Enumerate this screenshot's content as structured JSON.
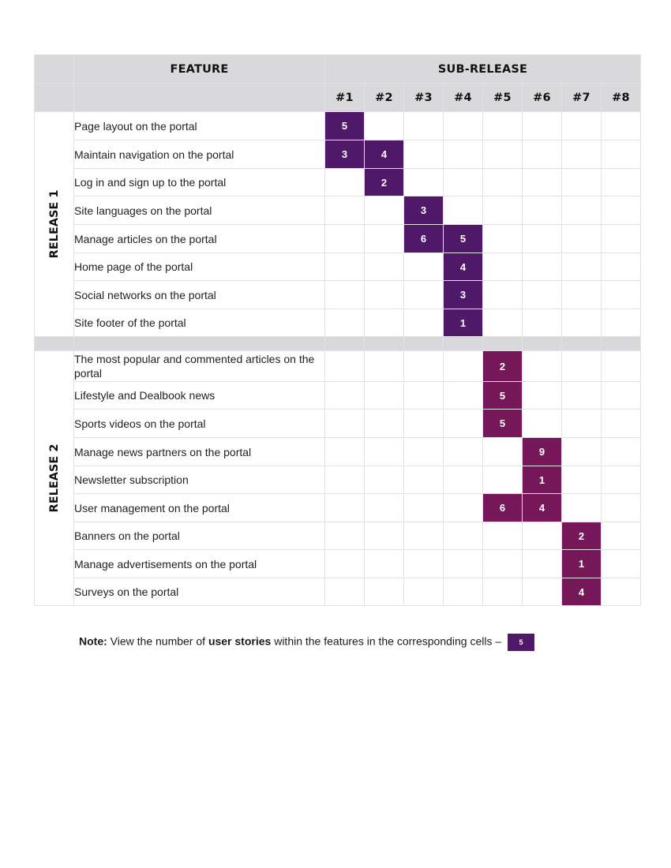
{
  "header": {
    "feature_label": "FEATURE",
    "subrelease_label": "SUB-RELEASE",
    "subreleases": [
      "#1",
      "#2",
      "#3",
      "#4",
      "#5",
      "#6",
      "#7",
      "#8"
    ]
  },
  "colors": {
    "release1": "#4f1868",
    "release2": "#76175a",
    "header_bg": "#d9d9dc",
    "grid": "#e2e2e4"
  },
  "releases": [
    {
      "label": "RELEASE 1",
      "color": "#4f1868",
      "rows": [
        {
          "feature": "Page layout on the portal",
          "cells": [
            5,
            null,
            null,
            null,
            null,
            null,
            null,
            null
          ]
        },
        {
          "feature": "Maintain navigation on the portal",
          "cells": [
            3,
            4,
            null,
            null,
            null,
            null,
            null,
            null
          ]
        },
        {
          "feature": "Log in and sign up to the portal",
          "cells": [
            null,
            2,
            null,
            null,
            null,
            null,
            null,
            null
          ]
        },
        {
          "feature": "Site languages on the portal",
          "cells": [
            null,
            null,
            3,
            null,
            null,
            null,
            null,
            null
          ]
        },
        {
          "feature": "Manage articles on the portal",
          "cells": [
            null,
            null,
            6,
            5,
            null,
            null,
            null,
            null
          ]
        },
        {
          "feature": "Home page of the portal",
          "cells": [
            null,
            null,
            null,
            4,
            null,
            null,
            null,
            null
          ]
        },
        {
          "feature": "Social networks on the portal",
          "cells": [
            null,
            null,
            null,
            3,
            null,
            null,
            null,
            null
          ]
        },
        {
          "feature": "Site footer of the portal",
          "cells": [
            null,
            null,
            null,
            1,
            null,
            null,
            null,
            null
          ]
        }
      ]
    },
    {
      "label": "RELEASE 2",
      "color": "#76175a",
      "rows": [
        {
          "feature": "The most popular and commented articles on the portal",
          "cells": [
            null,
            null,
            null,
            null,
            2,
            null,
            null,
            null
          ]
        },
        {
          "feature": "Lifestyle and Dealbook news",
          "cells": [
            null,
            null,
            null,
            null,
            5,
            null,
            null,
            null
          ]
        },
        {
          "feature": "Sports videos on the portal",
          "cells": [
            null,
            null,
            null,
            null,
            5,
            null,
            null,
            null
          ]
        },
        {
          "feature": "Manage news partners on the portal",
          "cells": [
            null,
            null,
            null,
            null,
            null,
            9,
            null,
            null
          ]
        },
        {
          "feature": "Newsletter subscription",
          "cells": [
            null,
            null,
            null,
            null,
            null,
            1,
            null,
            null
          ]
        },
        {
          "feature": "User management on the portal",
          "cells": [
            null,
            null,
            null,
            null,
            6,
            4,
            null,
            null
          ]
        },
        {
          "feature": "Banners on the portal",
          "cells": [
            null,
            null,
            null,
            null,
            null,
            null,
            2,
            null
          ]
        },
        {
          "feature": "Manage advertisements on the portal",
          "cells": [
            null,
            null,
            null,
            null,
            null,
            null,
            1,
            null
          ]
        },
        {
          "feature": "Surveys on the portal",
          "cells": [
            null,
            null,
            null,
            null,
            null,
            null,
            4,
            null
          ]
        }
      ]
    }
  ],
  "note": {
    "prefix_bold": "Note:",
    "text1": " View the number of ",
    "bold2": "user stories",
    "text2": " within the features in the corresponding cells –",
    "sample_value": "5"
  }
}
